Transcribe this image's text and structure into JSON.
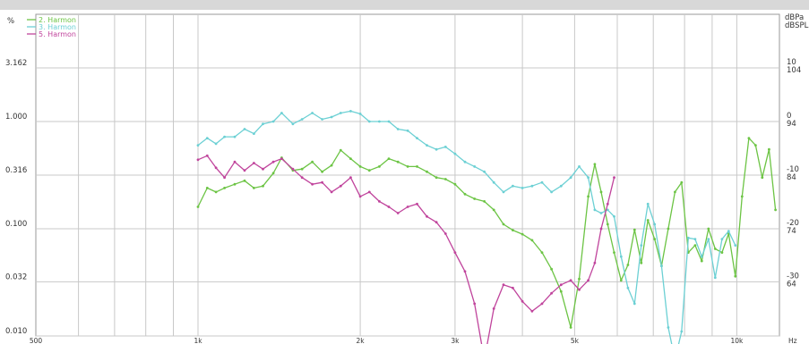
{
  "chart_data": {
    "type": "line",
    "xscale": "log",
    "yscale": "log",
    "xlim": [
      500,
      12000
    ],
    "ylim": [
      0.01,
      10
    ],
    "grid": true,
    "legend_position": "top-left",
    "left_unit_label": "%",
    "right_unit_labels": [
      "dBPa",
      "dBSPL"
    ],
    "x_unit_label": "Hz",
    "x_ticks": [
      {
        "value": 500,
        "label": "500"
      },
      {
        "value": 1000,
        "label": "1k"
      },
      {
        "value": 2000,
        "label": "2k"
      },
      {
        "value": 3000,
        "label": "3k"
      },
      {
        "value": 5000,
        "label": "5k"
      },
      {
        "value": 10000,
        "label": "10k"
      }
    ],
    "y_ticks": [
      {
        "value": 3.162,
        "label": "3.162"
      },
      {
        "value": 1.0,
        "label": "1.000"
      },
      {
        "value": 0.316,
        "label": "0.316"
      },
      {
        "value": 0.1,
        "label": "0.100"
      },
      {
        "value": 0.032,
        "label": "0.032"
      },
      {
        "value": 0.01,
        "label": "0.010"
      }
    ],
    "right_ticks": [
      {
        "value": 3.162,
        "label1": "10",
        "label2": "104"
      },
      {
        "value": 1.0,
        "label1": "0",
        "label2": "94"
      },
      {
        "value": 0.316,
        "label1": "-10",
        "label2": "84"
      },
      {
        "value": 0.1,
        "label1": "-20",
        "label2": "74"
      },
      {
        "value": 0.032,
        "label1": "-30",
        "label2": "64"
      }
    ],
    "series": [
      {
        "name": "2. Harmon",
        "color": "#6cc444",
        "x": [
          1000,
          1040,
          1080,
          1120,
          1170,
          1220,
          1270,
          1320,
          1380,
          1430,
          1500,
          1560,
          1630,
          1700,
          1770,
          1840,
          1920,
          2000,
          2080,
          2170,
          2260,
          2350,
          2450,
          2550,
          2660,
          2770,
          2880,
          3000,
          3130,
          3260,
          3400,
          3540,
          3690,
          3840,
          4000,
          4170,
          4350,
          4530,
          4720,
          4920,
          5100,
          5300,
          5450,
          5600,
          5760,
          5920,
          6100,
          6280,
          6460,
          6650,
          6840,
          7040,
          7250,
          7460,
          7680,
          7900,
          8130,
          8370,
          8610,
          8860,
          9120,
          9390,
          9660,
          9940,
          10230,
          10530,
          10840,
          11150,
          11480,
          11800
        ],
        "y": [
          0.16,
          0.24,
          0.22,
          0.24,
          0.26,
          0.28,
          0.24,
          0.25,
          0.33,
          0.46,
          0.35,
          0.36,
          0.42,
          0.34,
          0.39,
          0.54,
          0.45,
          0.38,
          0.35,
          0.38,
          0.45,
          0.42,
          0.38,
          0.38,
          0.34,
          0.3,
          0.29,
          0.26,
          0.21,
          0.19,
          0.18,
          0.15,
          0.11,
          0.097,
          0.089,
          0.078,
          0.06,
          0.042,
          0.026,
          0.012,
          0.034,
          0.2,
          0.4,
          0.22,
          0.11,
          0.06,
          0.033,
          0.046,
          0.098,
          0.048,
          0.12,
          0.08,
          0.045,
          0.1,
          0.22,
          0.27,
          0.06,
          0.07,
          0.05,
          0.1,
          0.065,
          0.06,
          0.09,
          0.036,
          0.2,
          0.7,
          0.6,
          0.3,
          0.55,
          0.15
        ]
      },
      {
        "name": "3. Harmon",
        "color": "#6cd0d4",
        "x": [
          1000,
          1040,
          1080,
          1120,
          1170,
          1220,
          1270,
          1320,
          1380,
          1430,
          1500,
          1560,
          1630,
          1700,
          1770,
          1840,
          1920,
          2000,
          2080,
          2170,
          2260,
          2350,
          2450,
          2550,
          2660,
          2770,
          2880,
          3000,
          3130,
          3260,
          3400,
          3540,
          3690,
          3840,
          4000,
          4170,
          4350,
          4530,
          4720,
          4920,
          5100,
          5300,
          5450,
          5600,
          5760,
          5920,
          6100,
          6280,
          6460,
          6650,
          6840,
          7040,
          7250,
          7460,
          7680,
          7900,
          8130,
          8370,
          8610,
          8860,
          9120,
          9390,
          9660,
          9940
        ],
        "y": [
          0.6,
          0.7,
          0.62,
          0.72,
          0.72,
          0.85,
          0.77,
          0.95,
          1.0,
          1.2,
          0.95,
          1.05,
          1.2,
          1.05,
          1.1,
          1.2,
          1.25,
          1.18,
          1.0,
          1.0,
          1.0,
          0.85,
          0.82,
          0.7,
          0.6,
          0.55,
          0.58,
          0.5,
          0.42,
          0.38,
          0.34,
          0.27,
          0.22,
          0.25,
          0.24,
          0.25,
          0.27,
          0.22,
          0.25,
          0.3,
          0.38,
          0.3,
          0.15,
          0.14,
          0.15,
          0.13,
          0.055,
          0.028,
          0.02,
          0.07,
          0.17,
          0.11,
          0.045,
          0.012,
          0.006,
          0.011,
          0.082,
          0.08,
          0.055,
          0.08,
          0.035,
          0.08,
          0.095,
          0.07
        ]
      },
      {
        "name": "5. Harmon",
        "color": "#c0449c",
        "x": [
          1000,
          1040,
          1080,
          1120,
          1170,
          1220,
          1270,
          1320,
          1380,
          1430,
          1500,
          1560,
          1630,
          1700,
          1770,
          1840,
          1920,
          2000,
          2080,
          2170,
          2260,
          2350,
          2450,
          2550,
          2660,
          2770,
          2880,
          3000,
          3130,
          3260,
          3400,
          3540,
          3690,
          3840,
          4000,
          4170,
          4350,
          4530,
          4720,
          4920,
          5100,
          5300,
          5450,
          5600,
          5760,
          5920
        ],
        "y": [
          0.44,
          0.48,
          0.37,
          0.3,
          0.42,
          0.35,
          0.41,
          0.36,
          0.42,
          0.45,
          0.36,
          0.3,
          0.26,
          0.27,
          0.22,
          0.25,
          0.3,
          0.2,
          0.22,
          0.18,
          0.16,
          0.14,
          0.16,
          0.17,
          0.13,
          0.115,
          0.09,
          0.06,
          0.04,
          0.02,
          0.006,
          0.018,
          0.03,
          0.028,
          0.021,
          0.017,
          0.02,
          0.025,
          0.03,
          0.033,
          0.027,
          0.033,
          0.048,
          0.1,
          0.17,
          0.3
        ]
      }
    ]
  }
}
